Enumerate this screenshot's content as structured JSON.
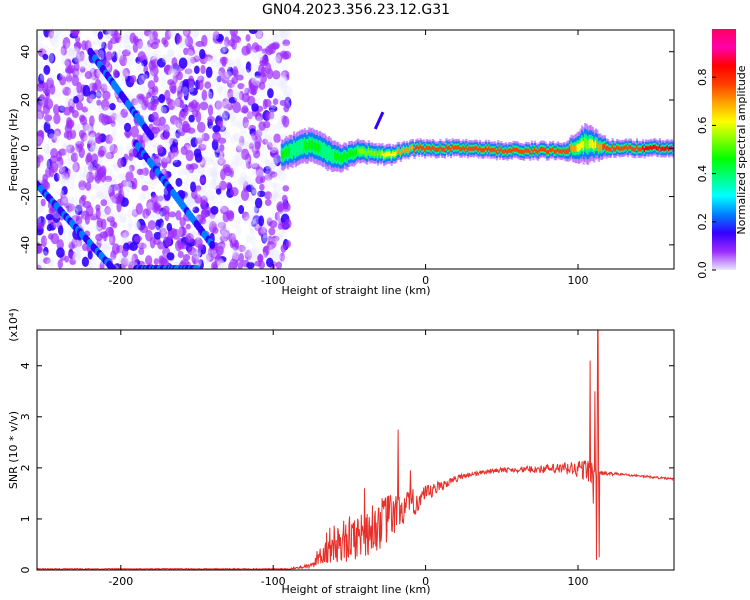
{
  "title": "GN04.2023.356.23.12.G31",
  "chart_data": [
    {
      "type": "heatmap",
      "xlabel": "Height of straight line (km)",
      "ylabel": "Frequency (Hz)",
      "xlim": [
        -255,
        163
      ],
      "ylim": [
        -50,
        49
      ],
      "xticks": [
        -200,
        -100,
        0,
        100
      ],
      "yticks": [
        -40,
        -20,
        0,
        20,
        40
      ],
      "colorbar": {
        "label": "Normalized spectral amplitude",
        "range": [
          0,
          1
        ],
        "ticks": [
          "0.0",
          "0.2",
          "0.4",
          "0.6",
          "0.8"
        ],
        "tick_values": [
          0.0,
          0.2,
          0.4,
          0.6,
          0.8
        ],
        "colors": [
          "#e8e8ff",
          "#9d2bff",
          "#3300ff",
          "#0080ff",
          "#00ffff",
          "#00ff80",
          "#00ff00",
          "#80ff00",
          "#ffff00",
          "#ffa500",
          "#ff4000",
          "#ff0000",
          "#ff00aa",
          "#ff0060"
        ]
      },
      "noise_region_x": [
        -255,
        -90
      ],
      "diagonal_streaks": [
        {
          "x": [
            -220,
            -180
          ],
          "y": [
            40,
            5
          ]
        },
        {
          "x": [
            -190,
            -140
          ],
          "y": [
            2,
            -40
          ]
        },
        {
          "x": [
            -255,
            -205
          ],
          "y": [
            -15,
            -50
          ]
        },
        {
          "x": [
            -190,
            -150
          ],
          "y": [
            -50,
            -50
          ]
        }
      ],
      "signal_track": [
        {
          "x": -95,
          "y": -3,
          "spread": 4.5,
          "amp": 0.45
        },
        {
          "x": -85,
          "y": 0,
          "spread": 5,
          "amp": 0.4
        },
        {
          "x": -75,
          "y": 2,
          "spread": 5,
          "amp": 0.45
        },
        {
          "x": -65,
          "y": -2,
          "spread": 5,
          "amp": 0.4
        },
        {
          "x": -55,
          "y": -4,
          "spread": 4,
          "amp": 0.45
        },
        {
          "x": -45,
          "y": -1,
          "spread": 3.5,
          "amp": 0.5
        },
        {
          "x": -35,
          "y": -2,
          "spread": 3,
          "amp": 0.55
        },
        {
          "x": -25,
          "y": -3,
          "spread": 3,
          "amp": 0.6
        },
        {
          "x": -15,
          "y": -1,
          "spread": 2.5,
          "amp": 0.7
        },
        {
          "x": -5,
          "y": 0,
          "spread": 2.5,
          "amp": 0.75
        },
        {
          "x": 10,
          "y": 0,
          "spread": 2.5,
          "amp": 0.8
        },
        {
          "x": 30,
          "y": 0,
          "spread": 2.5,
          "amp": 0.8
        },
        {
          "x": 50,
          "y": -1,
          "spread": 2.5,
          "amp": 0.8
        },
        {
          "x": 70,
          "y": -1,
          "spread": 2.5,
          "amp": 0.8
        },
        {
          "x": 90,
          "y": -1,
          "spread": 2.5,
          "amp": 0.8
        },
        {
          "x": 105,
          "y": 2,
          "spread": 6,
          "amp": 0.55
        },
        {
          "x": 120,
          "y": 0,
          "spread": 2.5,
          "amp": 0.8
        },
        {
          "x": 140,
          "y": 0,
          "spread": 2.5,
          "amp": 0.8
        },
        {
          "x": 163,
          "y": 0,
          "spread": 2.5,
          "amp": 0.9
        }
      ],
      "signal_spur": {
        "x": [
          -33,
          -28
        ],
        "y": [
          8,
          15
        ]
      }
    },
    {
      "type": "line",
      "xlabel": "Height of straight line (km)",
      "ylabel": "SNR (10 * v/v)",
      "yunit": "(x10⁴)",
      "xlim": [
        -255,
        163
      ],
      "ylim": [
        0,
        4.7
      ],
      "xticks": [
        -200,
        -100,
        0,
        100
      ],
      "yticks": [
        0,
        1,
        2,
        3,
        4
      ],
      "color": "#e8302a",
      "envelope": [
        {
          "x": -255,
          "y": 0.02,
          "noise": 0.01
        },
        {
          "x": -90,
          "y": 0.02,
          "noise": 0.01
        },
        {
          "x": -75,
          "y": 0.08,
          "noise": 0.05
        },
        {
          "x": -65,
          "y": 0.45,
          "noise": 0.35
        },
        {
          "x": -50,
          "y": 0.6,
          "noise": 0.45
        },
        {
          "x": -35,
          "y": 0.8,
          "noise": 0.5
        },
        {
          "x": -25,
          "y": 1.0,
          "noise": 0.5
        },
        {
          "x": -15,
          "y": 1.2,
          "noise": 0.35
        },
        {
          "x": 0,
          "y": 1.45,
          "noise": 0.2
        },
        {
          "x": 10,
          "y": 1.65,
          "noise": 0.1
        },
        {
          "x": 25,
          "y": 1.85,
          "noise": 0.05
        },
        {
          "x": 45,
          "y": 1.95,
          "noise": 0.04
        },
        {
          "x": 65,
          "y": 1.97,
          "noise": 0.06
        },
        {
          "x": 85,
          "y": 1.98,
          "noise": 0.1
        },
        {
          "x": 100,
          "y": 1.98,
          "noise": 0.18
        },
        {
          "x": 108,
          "y": 1.95,
          "noise": 0.25
        },
        {
          "x": 113,
          "y": 1.9,
          "noise": 0.05
        },
        {
          "x": 130,
          "y": 1.87,
          "noise": 0.02
        },
        {
          "x": 163,
          "y": 1.78,
          "noise": 0.02
        }
      ],
      "spikes": [
        {
          "x": -18,
          "y": 2.75
        },
        {
          "x": -10,
          "y": 1.95
        },
        {
          "x": -40,
          "y": 1.6
        },
        {
          "x": 108,
          "y": 4.1
        },
        {
          "x": 111,
          "y": 3.5
        },
        {
          "x": 113,
          "y": 4.7
        },
        {
          "x": 112,
          "y": 0.2
        },
        {
          "x": 114,
          "y": 0.25
        },
        {
          "x": 110,
          "y": 1.3
        }
      ]
    }
  ]
}
